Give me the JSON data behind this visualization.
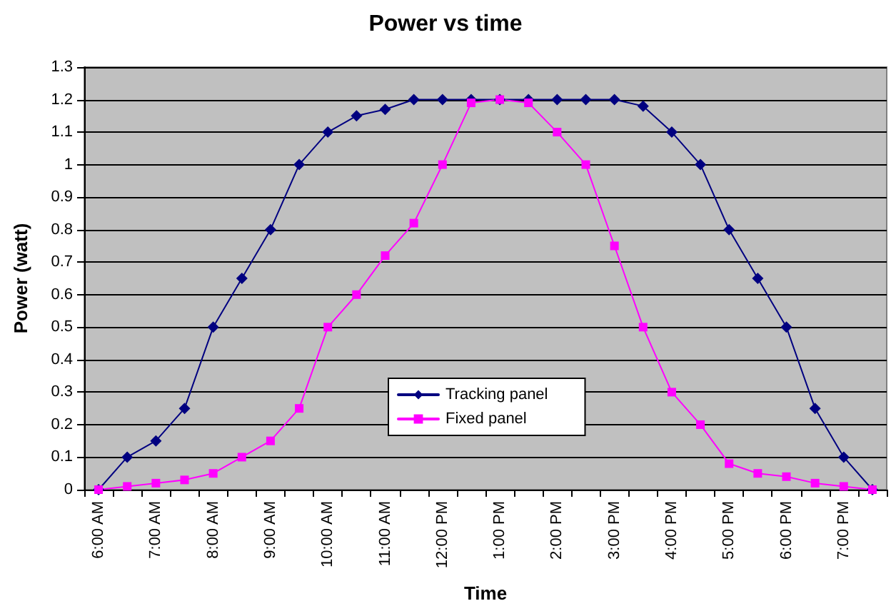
{
  "chart_data": {
    "type": "line",
    "title": "Power vs time",
    "xlabel": "Time",
    "ylabel": "Power (watt)",
    "categories": [
      "6:00 AM",
      null,
      "7:00 AM",
      null,
      "8:00 AM",
      null,
      "9:00 AM",
      null,
      "10:00 AM",
      null,
      "11:00 AM",
      null,
      "12:00 PM",
      null,
      "1:00 PM",
      null,
      "2:00 PM",
      null,
      "3:00 PM",
      null,
      "4:00 PM",
      null,
      "5:00 PM",
      null,
      "6:00 PM",
      null,
      "7:00 PM",
      null
    ],
    "series": [
      {
        "name": "Tracking panel",
        "color": "#000080",
        "marker": "diamond",
        "values": [
          0,
          0.1,
          0.15,
          0.25,
          0.5,
          0.65,
          0.8,
          1.0,
          1.1,
          1.15,
          1.17,
          1.2,
          1.2,
          1.2,
          1.2,
          1.2,
          1.2,
          1.2,
          1.2,
          1.18,
          1.1,
          1.0,
          0.8,
          0.65,
          0.5,
          0.25,
          0.1,
          0
        ]
      },
      {
        "name": "Fixed panel",
        "color": "#ff00ff",
        "marker": "square",
        "values": [
          0,
          0.01,
          0.02,
          0.03,
          0.05,
          0.1,
          0.15,
          0.25,
          0.5,
          0.6,
          0.72,
          0.82,
          1.0,
          1.19,
          1.2,
          1.19,
          1.1,
          1.0,
          0.75,
          0.5,
          0.3,
          0.2,
          0.08,
          0.05,
          0.04,
          0.02,
          0.01,
          0
        ]
      }
    ],
    "ylim": [
      0,
      1.3
    ],
    "yticks": [
      0,
      0.1,
      0.2,
      0.3,
      0.4,
      0.5,
      0.6,
      0.7,
      0.8,
      0.9,
      1,
      1.1,
      1.2,
      1.3
    ],
    "grid": "y",
    "legend": "bottom",
    "line_style": "solid"
  }
}
